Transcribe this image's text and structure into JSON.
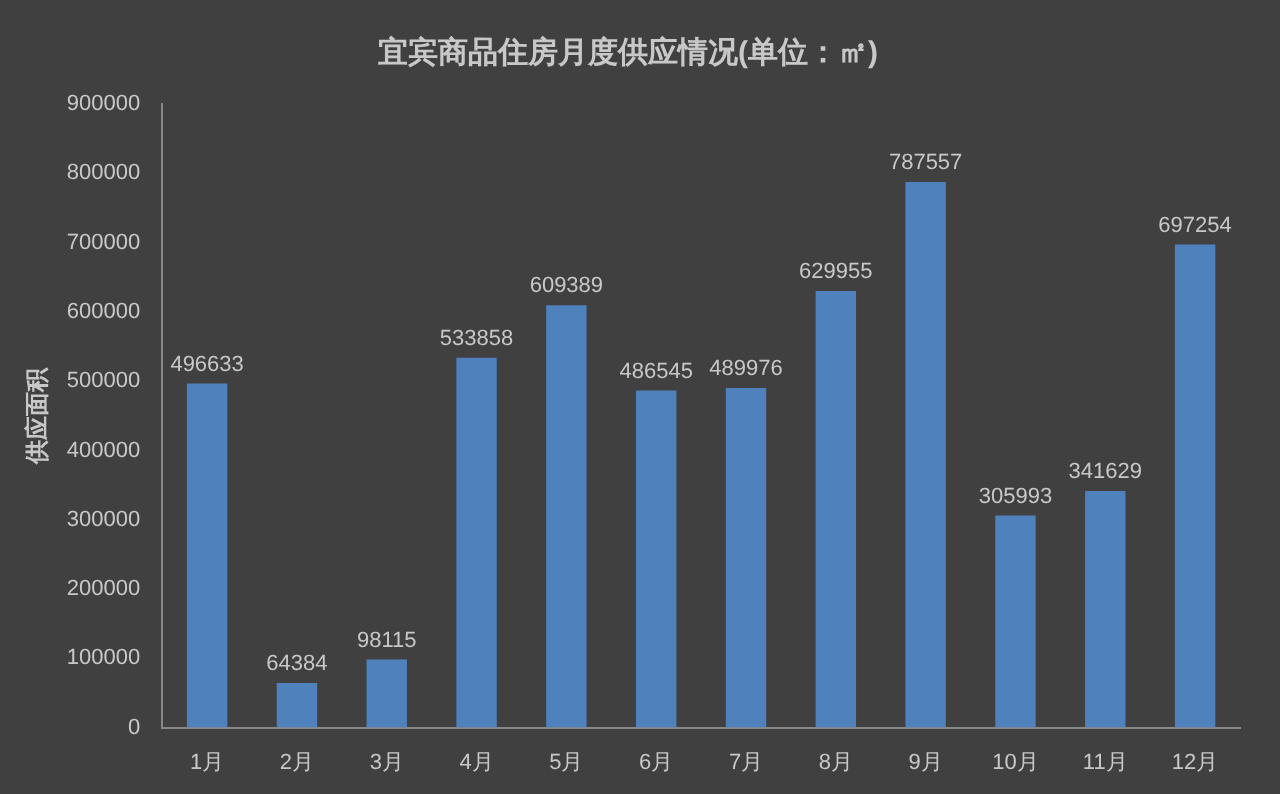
{
  "chart_data": {
    "type": "bar",
    "title": "宜宾商品住房月度供应情况(单位：㎡)",
    "ylabel": "供应面积",
    "categories": [
      "1月",
      "2月",
      "3月",
      "4月",
      "5月",
      "6月",
      "7月",
      "8月",
      "9月",
      "10月",
      "11月",
      "12月"
    ],
    "values": [
      496633,
      64384,
      98115,
      533858,
      609389,
      486545,
      489976,
      629955,
      787557,
      305993,
      341629,
      697254
    ],
    "color": "#4f81bd",
    "ylim": [
      0,
      900000
    ],
    "yticks": [
      0,
      100000,
      200000,
      300000,
      400000,
      500000,
      600000,
      700000,
      800000,
      900000
    ],
    "grid": false,
    "legend": false,
    "data_labels": true
  }
}
